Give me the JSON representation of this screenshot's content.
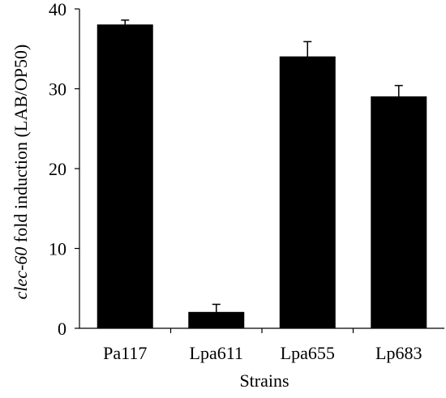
{
  "chart_data": {
    "type": "bar",
    "categories": [
      "Pa117",
      "Lpa611",
      "Lpa655",
      "Lp683"
    ],
    "values": [
      38.0,
      2.0,
      34.0,
      29.0
    ],
    "error": [
      0.6,
      1.0,
      1.9,
      1.4
    ],
    "xlabel": "Strains",
    "ylabel_italic": "clec-60",
    "ylabel_rest": " fold induction (LAB/OP50)",
    "ylim": [
      0,
      40
    ],
    "yticks": [
      0,
      10,
      20,
      30,
      40
    ],
    "grid": false,
    "bar_color": "#000000"
  }
}
